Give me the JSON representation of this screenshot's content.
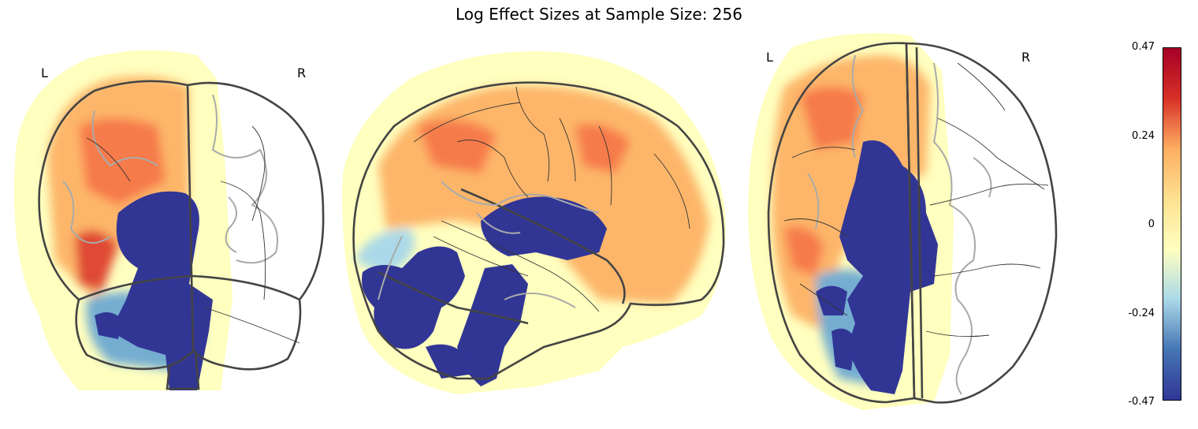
{
  "title": "Log Effect Sizes at Sample Size: 256",
  "orientation_labels": {
    "coronal_left": "L",
    "coronal_right": "R",
    "axial_left": "L",
    "axial_right": "R"
  },
  "colorbar": {
    "colormap": "RdYlBu_r",
    "vmin": -0.47,
    "vmax": 0.47,
    "ticks": [
      "0.47",
      "0.24",
      "0",
      "-0.24",
      "-0.47"
    ],
    "colors": {
      "neg_strong": "#313695",
      "neg_mid": "#4575b4",
      "neg_light": "#abd9e9",
      "neutral": "#ffffbf",
      "pos_light": "#fee090",
      "pos_mid": "#fdae61",
      "pos_strong": "#d73027",
      "pos_max": "#a50026"
    }
  },
  "views": [
    "coronal",
    "sagittal",
    "axial"
  ]
}
